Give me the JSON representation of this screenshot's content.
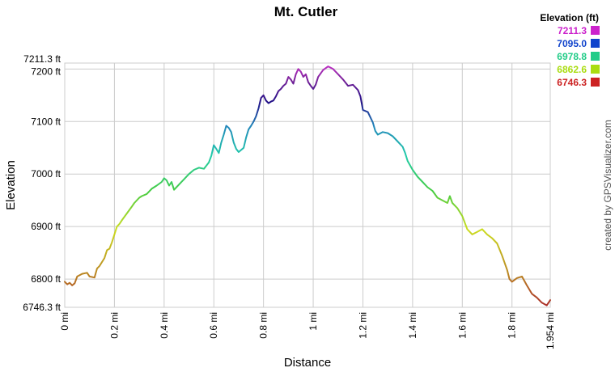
{
  "chart_data": {
    "type": "line",
    "title": "Mt. Cutler",
    "xlabel": "Distance",
    "ylabel": "Elevation",
    "credit": "created by GPSVisualizer.com",
    "legend": {
      "title": "Elevation (ft)",
      "placement": "top-right",
      "entries": [
        {
          "label": "7211.3",
          "color": "#cc22cc"
        },
        {
          "label": "7095.0",
          "color": "#1144cc"
        },
        {
          "label": "6978.8",
          "color": "#22cc88"
        },
        {
          "label": "6862.6",
          "color": "#aadd11"
        },
        {
          "label": "6746.3",
          "color": "#cc2222"
        }
      ]
    },
    "xlim": [
      0,
      1.954
    ],
    "ylim": [
      6746.3,
      7211.3
    ],
    "x_ticks": [
      {
        "value": 0,
        "label": "0 mi"
      },
      {
        "value": 0.2,
        "label": "0.2 mi"
      },
      {
        "value": 0.4,
        "label": "0.4 mi"
      },
      {
        "value": 0.6,
        "label": "0.6 mi"
      },
      {
        "value": 0.8,
        "label": "0.8 mi"
      },
      {
        "value": 1.0,
        "label": "1 mi"
      },
      {
        "value": 1.2,
        "label": "1.2 mi"
      },
      {
        "value": 1.4,
        "label": "1.4 mi"
      },
      {
        "value": 1.6,
        "label": "1.6 mi"
      },
      {
        "value": 1.8,
        "label": "1.8 mi"
      },
      {
        "value": 1.954,
        "label": "1.954 mi"
      }
    ],
    "y_ticks": [
      {
        "value": 6746.3,
        "label": "6746.3 ft"
      },
      {
        "value": 6800,
        "label": "6800 ft"
      },
      {
        "value": 6900,
        "label": "6900 ft"
      },
      {
        "value": 7000,
        "label": "7000 ft"
      },
      {
        "value": 7100,
        "label": "7100 ft"
      },
      {
        "value": 7200,
        "label": "7200 ft"
      },
      {
        "value": 7211.3,
        "label": "7211.3 ft"
      }
    ],
    "grid": true,
    "series": [
      {
        "x": [
          0,
          0.01,
          0.02,
          0.03,
          0.04,
          0.05,
          0.07,
          0.09,
          0.1,
          0.12,
          0.13,
          0.14,
          0.16,
          0.17,
          0.18,
          0.19,
          0.2,
          0.21,
          0.22,
          0.23,
          0.25,
          0.27,
          0.28,
          0.3,
          0.31,
          0.33,
          0.35,
          0.37,
          0.39,
          0.4,
          0.41,
          0.42,
          0.43,
          0.44,
          0.46,
          0.48,
          0.5,
          0.52,
          0.54,
          0.56,
          0.58,
          0.59,
          0.6,
          0.61,
          0.62,
          0.63,
          0.64,
          0.65,
          0.66,
          0.67,
          0.68,
          0.69,
          0.7,
          0.72,
          0.73,
          0.74,
          0.75,
          0.76,
          0.77,
          0.78,
          0.79,
          0.8,
          0.81,
          0.82,
          0.83,
          0.84,
          0.85,
          0.86,
          0.87,
          0.88,
          0.89,
          0.9,
          0.91,
          0.92,
          0.93,
          0.94,
          0.95,
          0.96,
          0.97,
          0.98,
          0.99,
          1.0,
          1.01,
          1.02,
          1.04,
          1.06,
          1.08,
          1.1,
          1.12,
          1.14,
          1.16,
          1.18,
          1.19,
          1.2,
          1.22,
          1.24,
          1.25,
          1.26,
          1.28,
          1.3,
          1.32,
          1.34,
          1.36,
          1.37,
          1.38,
          1.4,
          1.42,
          1.44,
          1.46,
          1.48,
          1.5,
          1.52,
          1.54,
          1.55,
          1.56,
          1.58,
          1.6,
          1.62,
          1.64,
          1.66,
          1.68,
          1.7,
          1.72,
          1.74,
          1.76,
          1.78,
          1.79,
          1.8,
          1.82,
          1.84,
          1.86,
          1.88,
          1.9,
          1.92,
          1.94,
          1.954
        ],
        "y": [
          6795,
          6790,
          6793,
          6788,
          6792,
          6805,
          6810,
          6812,
          6805,
          6803,
          6820,
          6825,
          6840,
          6855,
          6858,
          6870,
          6885,
          6900,
          6905,
          6912,
          6925,
          6938,
          6945,
          6955,
          6958,
          6962,
          6972,
          6978,
          6985,
          6992,
          6988,
          6978,
          6985,
          6970,
          6980,
          6990,
          7000,
          7008,
          7012,
          7010,
          7022,
          7035,
          7055,
          7048,
          7040,
          7060,
          7075,
          7092,
          7088,
          7080,
          7060,
          7048,
          7042,
          7050,
          7070,
          7085,
          7092,
          7100,
          7110,
          7125,
          7145,
          7150,
          7140,
          7135,
          7138,
          7140,
          7148,
          7158,
          7162,
          7168,
          7172,
          7185,
          7180,
          7172,
          7190,
          7200,
          7195,
          7185,
          7190,
          7175,
          7168,
          7162,
          7170,
          7185,
          7198,
          7205,
          7200,
          7190,
          7180,
          7168,
          7170,
          7160,
          7148,
          7122,
          7118,
          7098,
          7082,
          7075,
          7080,
          7078,
          7072,
          7062,
          7052,
          7040,
          7025,
          7008,
          6995,
          6985,
          6975,
          6968,
          6955,
          6950,
          6945,
          6958,
          6945,
          6935,
          6920,
          6895,
          6885,
          6890,
          6895,
          6885,
          6878,
          6868,
          6845,
          6818,
          6800,
          6795,
          6802,
          6805,
          6788,
          6772,
          6765,
          6755,
          6750,
          6760
        ]
      }
    ]
  }
}
